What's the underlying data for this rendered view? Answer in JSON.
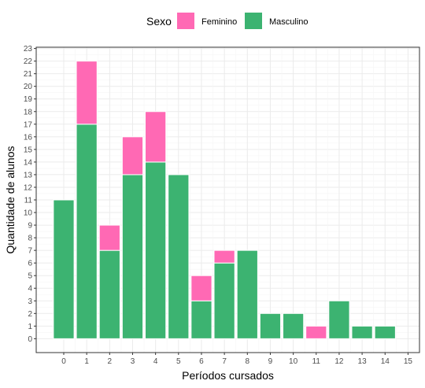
{
  "chart_data": {
    "type": "bar",
    "stacked": true,
    "x": [
      0,
      1,
      2,
      3,
      4,
      5,
      6,
      7,
      8,
      9,
      10,
      11,
      12,
      13,
      14
    ],
    "xticks": [
      0,
      1,
      2,
      3,
      4,
      5,
      6,
      7,
      8,
      9,
      10,
      11,
      12,
      13,
      14,
      15
    ],
    "series": [
      {
        "name": "Masculino",
        "color": "#3CB371",
        "values": [
          11,
          17,
          7,
          13,
          14,
          13,
          3,
          6,
          7,
          2,
          2,
          0,
          3,
          1,
          1
        ]
      },
      {
        "name": "Feminino",
        "color": "#FF69B4",
        "values": [
          0,
          5,
          2,
          3,
          4,
          0,
          2,
          1,
          0,
          0,
          0,
          1,
          0,
          0,
          0
        ]
      }
    ],
    "xlabel": "Períodos cursados",
    "ylabel": "Quantidade de alunos",
    "xlim": [
      -1.2,
      15.5
    ],
    "ylim": [
      -1.1,
      23.1
    ],
    "yticks": [
      0,
      1,
      2,
      3,
      4,
      5,
      6,
      7,
      8,
      9,
      10,
      11,
      12,
      13,
      14,
      15,
      16,
      17,
      18,
      19,
      20,
      21,
      22,
      23
    ],
    "legend": {
      "title": "Sexo",
      "placement": "top",
      "entries": [
        "Feminino",
        "Masculino"
      ]
    },
    "grid": true
  }
}
